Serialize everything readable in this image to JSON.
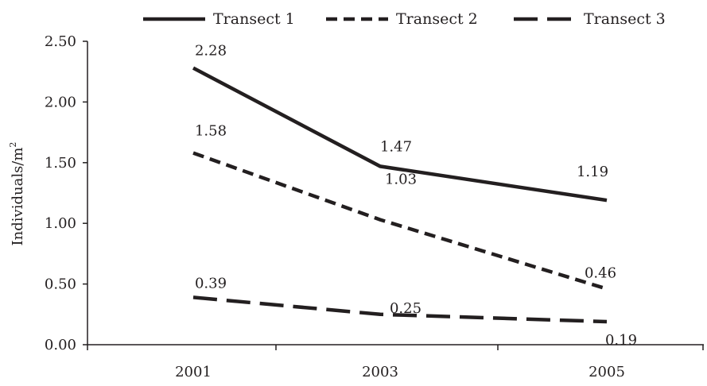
{
  "chart_data": {
    "type": "line",
    "categories": [
      "2001",
      "2003",
      "2005"
    ],
    "ylabel": "Individuals/m",
    "ylabel_sup": "2",
    "ylim": [
      0,
      2.5
    ],
    "yticks": [
      "0.00",
      "0.50",
      "1.00",
      "1.50",
      "2.00",
      "2.50"
    ],
    "grid": false,
    "legend_position": "top",
    "line_color": "#231f20",
    "series": [
      {
        "name": "Transect 1",
        "dash": "solid",
        "values": [
          2.28,
          1.47,
          1.19
        ],
        "labels": [
          "2.28",
          "1.47",
          "1.19"
        ]
      },
      {
        "name": "Transect 2",
        "dash": "short-dash",
        "values": [
          1.58,
          1.03,
          0.46
        ],
        "labels": [
          "1.58",
          "1.03",
          "0.46"
        ]
      },
      {
        "name": "Transect 3",
        "dash": "long-dash",
        "values": [
          0.39,
          0.25,
          0.19
        ],
        "labels": [
          "0.39",
          "0.25",
          "0.19"
        ]
      }
    ]
  }
}
